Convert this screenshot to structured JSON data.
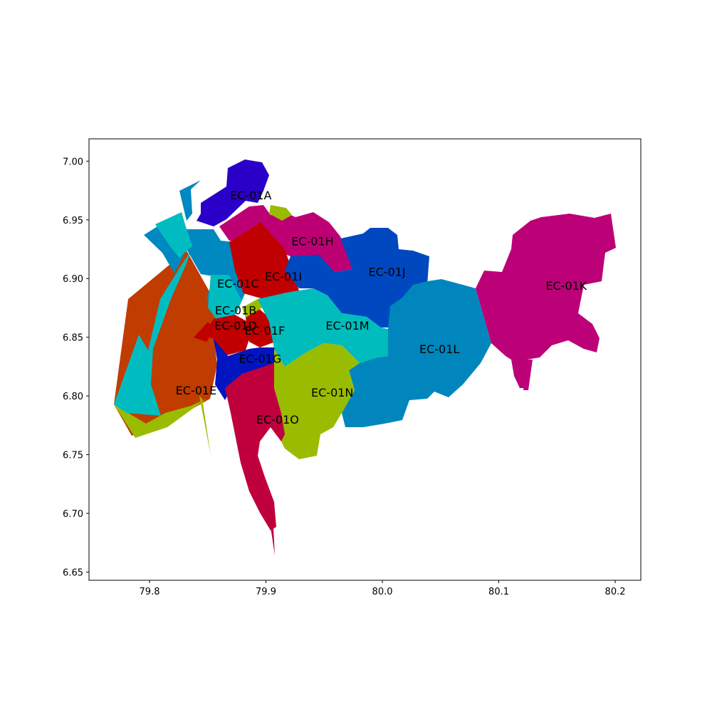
{
  "map": {
    "regions": [
      {
        "id": "EC-01A",
        "color": "#2a00c8",
        "label_lon": 79.887,
        "label_lat": 6.971
      },
      {
        "id": "EC-01B",
        "color": "#00bcc0",
        "label_lon": 79.874,
        "label_lat": 6.873
      },
      {
        "id": "EC-01C",
        "color": "#0088c0",
        "label_lon": 79.876,
        "label_lat": 6.896
      },
      {
        "id": "EC-01D",
        "color": "#c00000",
        "label_lon": 79.874,
        "label_lat": 6.86
      },
      {
        "id": "EC-01E",
        "color": "#c03c00",
        "label_lon": 79.84,
        "label_lat": 6.805
      },
      {
        "id": "EC-01F",
        "color": "#9abc00",
        "label_lon": 79.899,
        "label_lat": 6.856
      },
      {
        "id": "EC-01G",
        "color": "#0014c0",
        "label_lon": 79.895,
        "label_lat": 6.832
      },
      {
        "id": "EC-01H",
        "color": "#bc0074",
        "label_lon": 79.94,
        "label_lat": 6.932
      },
      {
        "id": "EC-01I",
        "color": "#c00000",
        "label_lon": 79.915,
        "label_lat": 6.902
      },
      {
        "id": "EC-01J",
        "color": "#0048c0",
        "label_lon": 80.004,
        "label_lat": 6.906
      },
      {
        "id": "EC-01K",
        "color": "#bc0078",
        "label_lon": 80.158,
        "label_lat": 6.894
      },
      {
        "id": "EC-01L",
        "color": "#0086bc",
        "label_lon": 80.049,
        "label_lat": 6.84
      },
      {
        "id": "EC-01M",
        "color": "#00bcbc",
        "label_lon": 79.97,
        "label_lat": 6.86
      },
      {
        "id": "EC-01N",
        "color": "#9abc00",
        "label_lon": 79.957,
        "label_lat": 6.803
      },
      {
        "id": "EC-01O",
        "color": "#c0003c",
        "label_lon": 79.91,
        "label_lat": 6.78
      }
    ]
  },
  "axes": {
    "xlim": [
      79.748,
      80.222
    ],
    "ylim": [
      6.643,
      7.019
    ],
    "xticks": [
      "79.8",
      "79.9",
      "80.0",
      "80.1",
      "80.2"
    ],
    "yticks": [
      "6.65",
      "6.70",
      "6.75",
      "6.80",
      "6.85",
      "6.90",
      "6.95",
      "7.00"
    ]
  }
}
